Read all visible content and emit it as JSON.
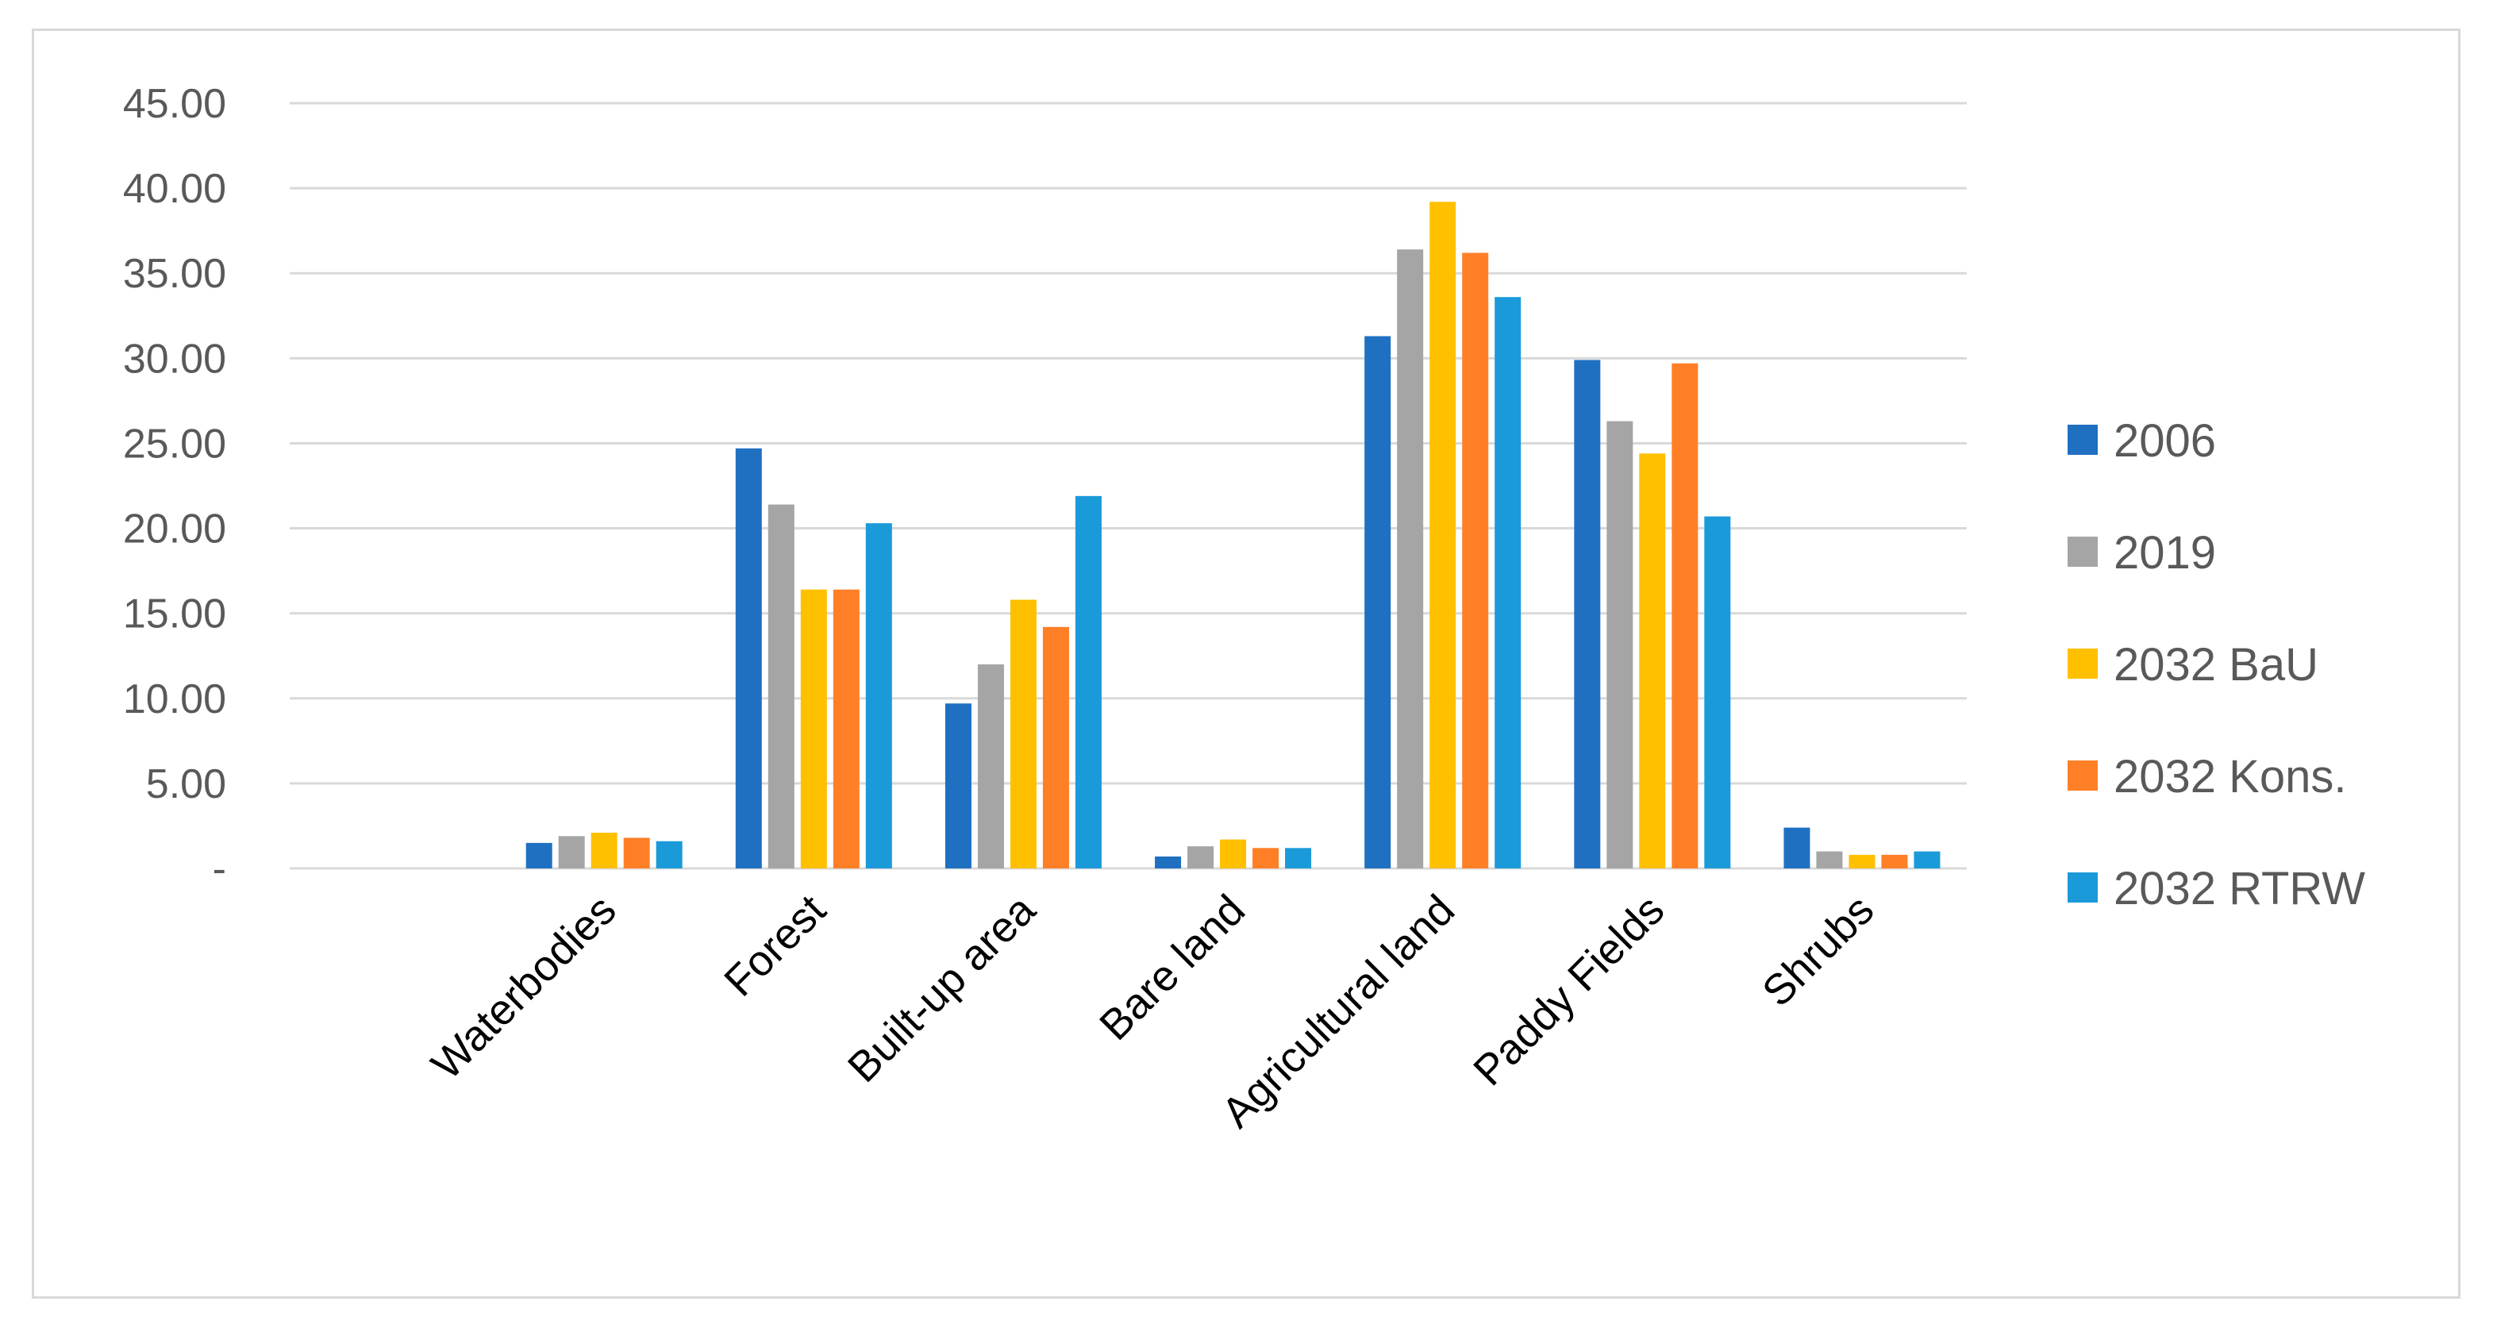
{
  "chart_data": {
    "type": "bar",
    "title": "",
    "xlabel": "",
    "ylabel": "",
    "ylim": [
      0,
      45
    ],
    "yticks": [
      0,
      5,
      10,
      15,
      20,
      25,
      30,
      35,
      40,
      45
    ],
    "ytick_labels": [
      "-",
      "5.00",
      "10.00",
      "15.00",
      "20.00",
      "25.00",
      "30.00",
      "35.00",
      "40.00",
      "45.00"
    ],
    "grid": true,
    "legend_position": "right",
    "categories": [
      "",
      "Waterbodies",
      "Forest",
      "Built-up area",
      "Bare land",
      "Agricultural land",
      "Paddy Fields",
      "Shrubs"
    ],
    "series": [
      {
        "name": "2006",
        "color": "#1f70c1",
        "values": [
          null,
          1.5,
          24.7,
          9.7,
          0.7,
          31.3,
          29.9,
          2.4
        ]
      },
      {
        "name": "2019",
        "color": "#a5a5a5",
        "values": [
          null,
          1.9,
          21.4,
          12.0,
          1.3,
          36.4,
          26.3,
          1.0
        ]
      },
      {
        "name": "2032 BaU",
        "color": "#ffc000",
        "values": [
          null,
          2.1,
          16.4,
          15.8,
          1.7,
          39.2,
          24.4,
          0.8
        ]
      },
      {
        "name": "2032 Kons.",
        "color": "#ff7f27",
        "values": [
          null,
          1.8,
          16.4,
          14.2,
          1.2,
          36.2,
          29.7,
          0.8
        ]
      },
      {
        "name": "2032 RTRW",
        "color": "#1b9ad9",
        "values": [
          null,
          1.6,
          20.3,
          21.9,
          1.2,
          33.6,
          20.7,
          1.0
        ]
      }
    ]
  }
}
